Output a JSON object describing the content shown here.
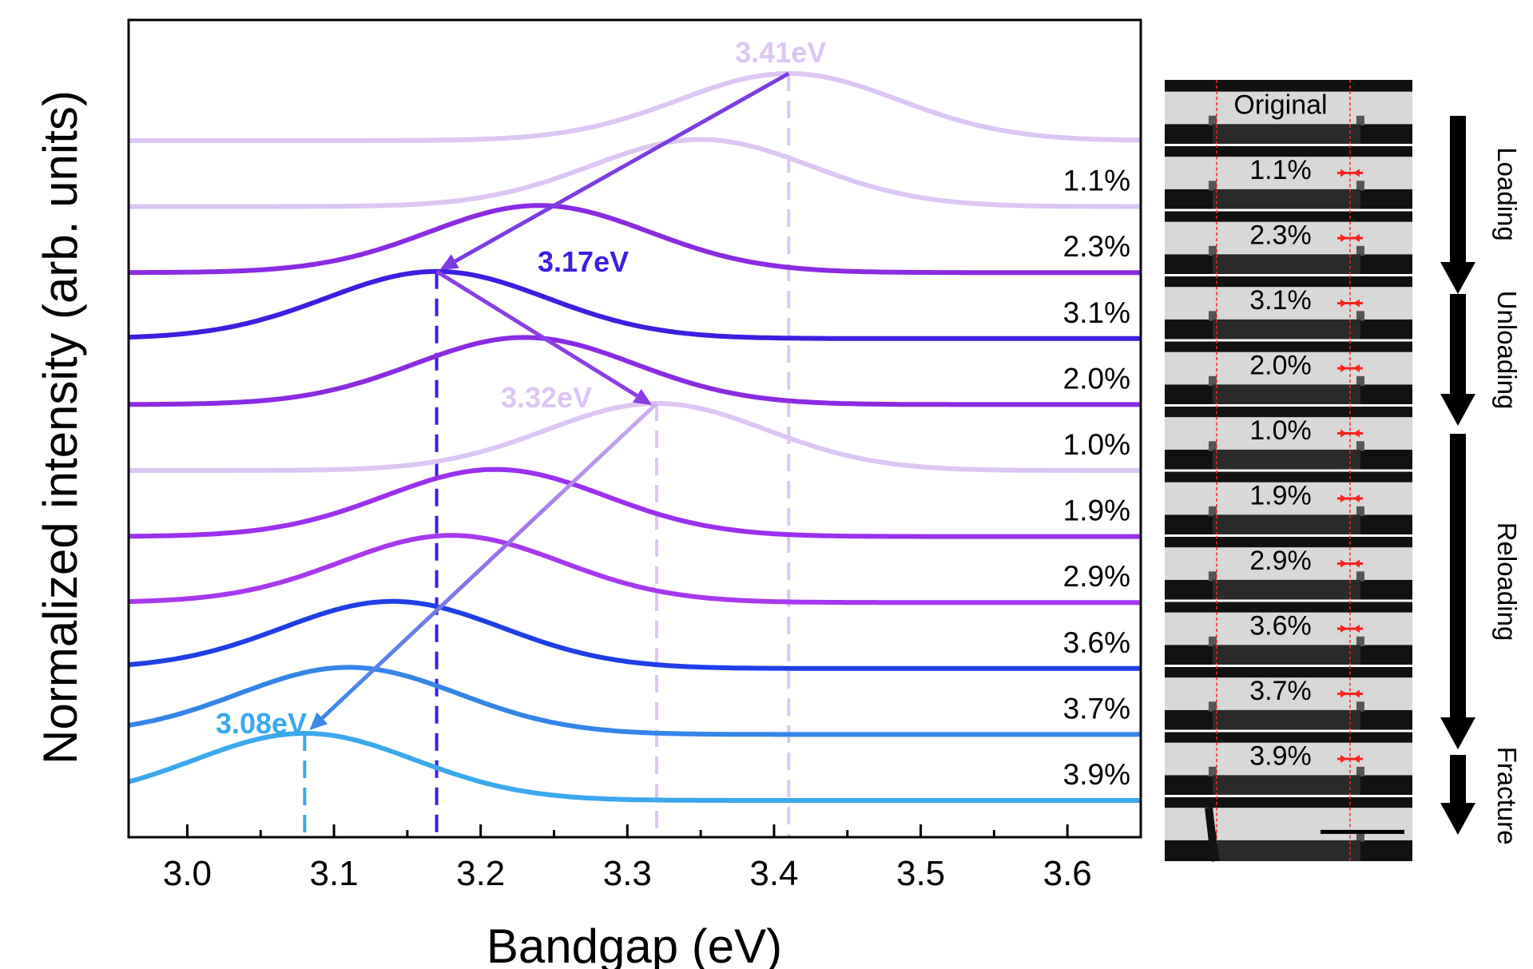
{
  "chart_data": {
    "type": "line",
    "xlabel": "Bandgap (eV)",
    "ylabel": "Normalized intensity (arb. units)",
    "xlim": [
      2.96,
      3.65
    ],
    "xticks": [
      "3.0",
      "3.1",
      "3.2",
      "3.3",
      "3.4",
      "3.5",
      "3.6"
    ],
    "series": [
      {
        "strain": "",
        "peak_ev": 3.41,
        "color": "#dcc6f3"
      },
      {
        "strain": "1.1%",
        "peak_ev": 3.35,
        "color": "#dcc6f3"
      },
      {
        "strain": "2.3%",
        "peak_ev": 3.24,
        "color": "#8a2be2"
      },
      {
        "strain": "3.1%",
        "peak_ev": 3.17,
        "color": "#3a1fe0"
      },
      {
        "strain": "2.0%",
        "peak_ev": 3.23,
        "color": "#8a2be2"
      },
      {
        "strain": "1.0%",
        "peak_ev": 3.32,
        "color": "#dcc6f3"
      },
      {
        "strain": "1.9%",
        "peak_ev": 3.21,
        "color": "#9b30f0"
      },
      {
        "strain": "2.9%",
        "peak_ev": 3.18,
        "color": "#a838ef"
      },
      {
        "strain": "3.6%",
        "peak_ev": 3.14,
        "color": "#1f3ee6"
      },
      {
        "strain": "3.7%",
        "peak_ev": 3.11,
        "color": "#3585e8"
      },
      {
        "strain": "3.9%",
        "peak_ev": 3.08,
        "color": "#3aa8ec"
      }
    ],
    "peak_annotations": [
      {
        "label": "3.41eV",
        "x": 3.41,
        "color": "#dcc6f3"
      },
      {
        "label": "3.17eV",
        "x": 3.17,
        "color": "#3a1fe0"
      },
      {
        "label": "3.32eV",
        "x": 3.32,
        "color": "#dcc6f3"
      },
      {
        "label": "3.08eV",
        "x": 3.08,
        "color": "#3aa8ec"
      }
    ]
  },
  "micrographs": {
    "labels": [
      "Original",
      "1.1%",
      "2.3%",
      "3.1%",
      "2.0%",
      "1.0%",
      "1.9%",
      "2.9%",
      "3.6%",
      "3.7%",
      "3.9%"
    ],
    "marker_color": "#ff2020",
    "scale_bar": true
  },
  "phases": [
    "Loading",
    "Unloading",
    "Reloading",
    "Fracture"
  ]
}
